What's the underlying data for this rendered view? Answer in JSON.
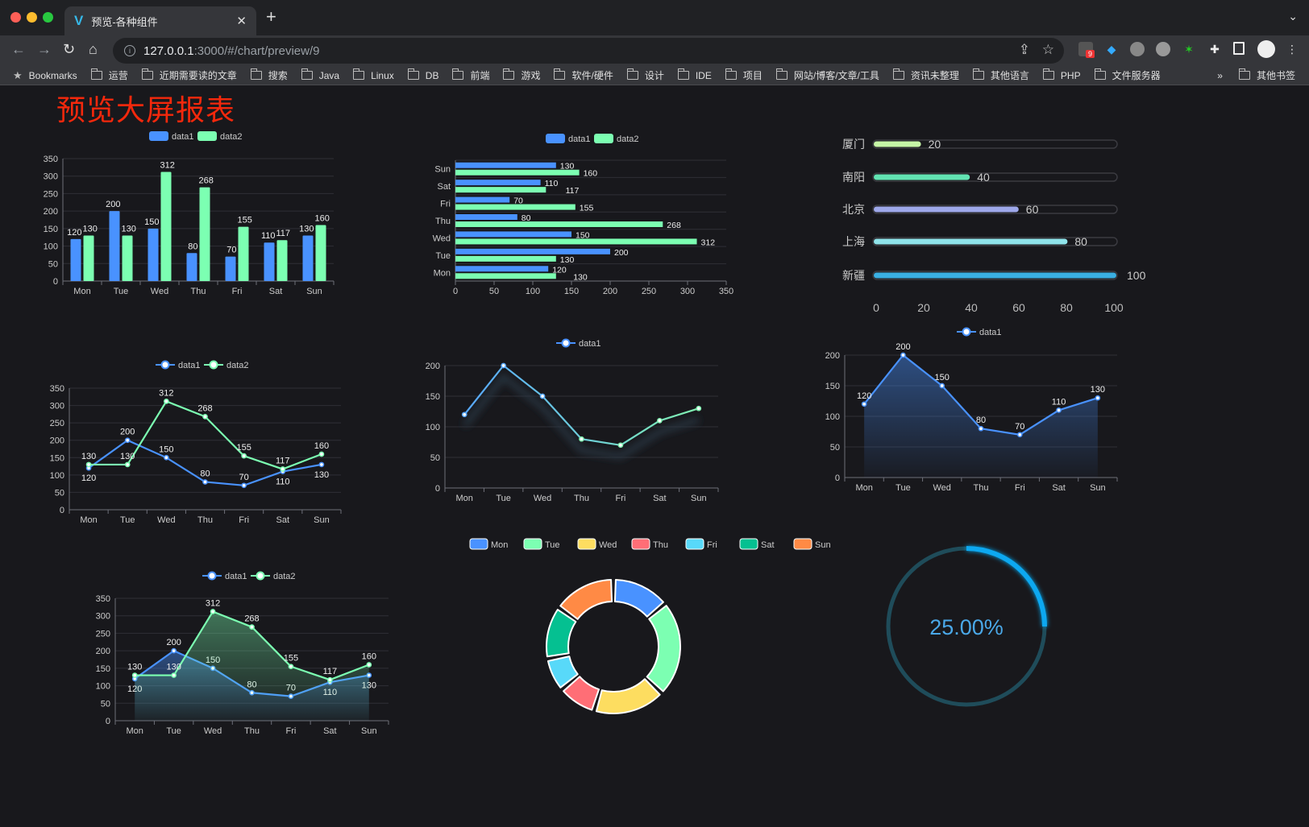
{
  "browser": {
    "tab_title": "预览-各种组件",
    "url_host": "127.0.0.1",
    "url_path": ":3000/#/chart/preview/9",
    "extension_badge": "9",
    "bookmarks": [
      "Bookmarks",
      "运营",
      "近期需要读的文章",
      "搜索",
      "Java",
      "Linux",
      "DB",
      "前端",
      "游戏",
      "软件/硬件",
      "设计",
      "IDE",
      "项目",
      "网站/博客/文章/工具",
      "资讯未整理",
      "其他语言",
      "PHP",
      "文件服务器"
    ],
    "more_bookmarks": "»",
    "other_bookmarks": "其他书签"
  },
  "page": {
    "title": "预览大屏报表"
  },
  "colors": {
    "data1": "#4992ff",
    "data2": "#7cffb2",
    "title": "#f4280c",
    "background": "#18181c"
  },
  "chart_data": [
    {
      "type": "bar",
      "id": "bar-vertical",
      "categories": [
        "Mon",
        "Tue",
        "Wed",
        "Thu",
        "Fri",
        "Sat",
        "Sun"
      ],
      "series": [
        {
          "name": "data1",
          "values": [
            120,
            200,
            150,
            80,
            70,
            110,
            130
          ]
        },
        {
          "name": "data2",
          "values": [
            130,
            130,
            312,
            268,
            155,
            117,
            160
          ]
        }
      ],
      "ylim": [
        0,
        350
      ],
      "yticks": [
        0,
        50,
        100,
        150,
        200,
        250,
        300,
        350
      ],
      "legend": "top",
      "grid": true,
      "data_labels": true
    },
    {
      "type": "bar",
      "id": "bar-horizontal",
      "orientation": "horizontal",
      "categories": [
        "Mon",
        "Tue",
        "Wed",
        "Thu",
        "Fri",
        "Sat",
        "Sun"
      ],
      "series": [
        {
          "name": "data1",
          "values": [
            120,
            200,
            150,
            80,
            70,
            110,
            130
          ]
        },
        {
          "name": "data2",
          "values": [
            130,
            130,
            312,
            268,
            155,
            117,
            160
          ]
        }
      ],
      "xlim": [
        0,
        350
      ],
      "xticks": [
        0,
        50,
        100,
        150,
        200,
        250,
        300,
        350
      ],
      "legend": "top",
      "grid": true,
      "data_labels": true
    },
    {
      "type": "bar",
      "id": "progress-bars",
      "orientation": "horizontal",
      "categories": [
        "厦门",
        "南阳",
        "北京",
        "上海",
        "新疆"
      ],
      "values": [
        20,
        40,
        60,
        80,
        100
      ],
      "colors": [
        "#c6f5a6",
        "#62e3b2",
        "#9ea8ea",
        "#8fe3ea",
        "#3aafe2"
      ],
      "xlim": [
        0,
        100
      ],
      "xticks": [
        0,
        20,
        40,
        60,
        80,
        100
      ],
      "data_labels": true
    },
    {
      "type": "line",
      "id": "line-two-series",
      "categories": [
        "Mon",
        "Tue",
        "Wed",
        "Thu",
        "Fri",
        "Sat",
        "Sun"
      ],
      "series": [
        {
          "name": "data1",
          "values": [
            120,
            200,
            150,
            80,
            70,
            110,
            130
          ]
        },
        {
          "name": "data2",
          "values": [
            130,
            130,
            312,
            268,
            155,
            117,
            160
          ]
        }
      ],
      "ylim": [
        0,
        350
      ],
      "yticks": [
        0,
        50,
        100,
        150,
        200,
        250,
        300,
        350
      ],
      "legend": "top",
      "grid": true,
      "data_labels": true
    },
    {
      "type": "line",
      "id": "line-gradient",
      "categories": [
        "Mon",
        "Tue",
        "Wed",
        "Thu",
        "Fri",
        "Sat",
        "Sun"
      ],
      "series": [
        {
          "name": "data1",
          "values": [
            120,
            200,
            150,
            80,
            70,
            110,
            130
          ]
        }
      ],
      "ylim": [
        0,
        200
      ],
      "yticks": [
        0,
        50,
        100,
        150,
        200
      ],
      "legend": "top",
      "grid": true,
      "data_labels": false,
      "line_gradient": [
        "#58a8ff",
        "#80f0b0"
      ]
    },
    {
      "type": "area",
      "id": "area-single",
      "categories": [
        "Mon",
        "Tue",
        "Wed",
        "Thu",
        "Fri",
        "Sat",
        "Sun"
      ],
      "series": [
        {
          "name": "data1",
          "values": [
            120,
            200,
            150,
            80,
            70,
            110,
            130
          ]
        }
      ],
      "ylim": [
        0,
        200
      ],
      "yticks": [
        0,
        50,
        100,
        150,
        200
      ],
      "legend": "top",
      "grid": true,
      "data_labels": true
    },
    {
      "type": "area",
      "id": "area-two-series",
      "categories": [
        "Mon",
        "Tue",
        "Wed",
        "Thu",
        "Fri",
        "Sat",
        "Sun"
      ],
      "series": [
        {
          "name": "data1",
          "values": [
            120,
            200,
            150,
            80,
            70,
            110,
            130
          ]
        },
        {
          "name": "data2",
          "values": [
            130,
            130,
            312,
            268,
            155,
            117,
            160
          ]
        }
      ],
      "ylim": [
        0,
        350
      ],
      "yticks": [
        0,
        50,
        100,
        150,
        200,
        250,
        300,
        350
      ],
      "legend": "top",
      "grid": true,
      "data_labels": true
    },
    {
      "type": "pie",
      "id": "donut",
      "categories": [
        "Mon",
        "Tue",
        "Wed",
        "Thu",
        "Fri",
        "Sat",
        "Sun"
      ],
      "values": [
        120,
        200,
        150,
        80,
        70,
        110,
        130
      ],
      "colors": [
        "#4992ff",
        "#7cffb2",
        "#fddd60",
        "#ff6e76",
        "#58d9f9",
        "#05c091",
        "#ff8a45"
      ],
      "legend": "top"
    },
    {
      "type": "gauge",
      "id": "progress-ring",
      "value": 0.25,
      "label": "25.00%",
      "color": "#10a8f0",
      "track_color": "#1f4c5a"
    }
  ]
}
